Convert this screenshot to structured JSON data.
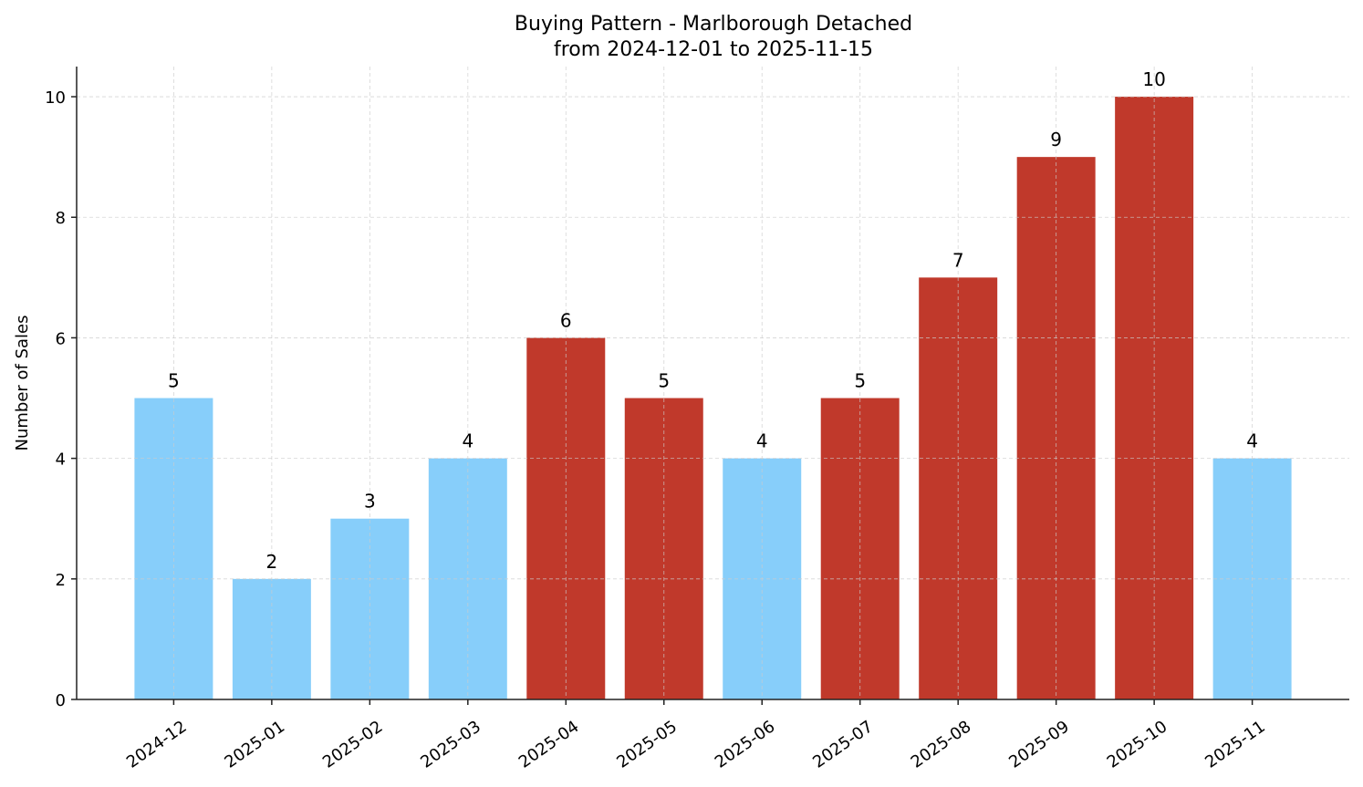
{
  "chart_data": {
    "type": "bar",
    "title": "Buying Pattern - Marlborough Detached",
    "subtitle": "from 2024-12-01 to 2025-11-15",
    "xlabel": "",
    "ylabel": "Number of Sales",
    "categories": [
      "2024-12",
      "2025-01",
      "2025-02",
      "2025-03",
      "2025-04",
      "2025-05",
      "2025-06",
      "2025-07",
      "2025-08",
      "2025-09",
      "2025-10",
      "2025-11"
    ],
    "values": [
      5,
      2,
      3,
      4,
      6,
      5,
      4,
      5,
      7,
      9,
      10,
      4
    ],
    "highlighted": [
      false,
      false,
      false,
      false,
      true,
      true,
      false,
      true,
      true,
      true,
      true,
      false
    ],
    "colors": {
      "normal": "#87CEFA",
      "highlight": "#C0392B"
    },
    "ylim": [
      0,
      10.5
    ],
    "yticks": [
      0,
      2,
      4,
      6,
      8,
      10
    ],
    "grid": true,
    "data_labels": true
  }
}
